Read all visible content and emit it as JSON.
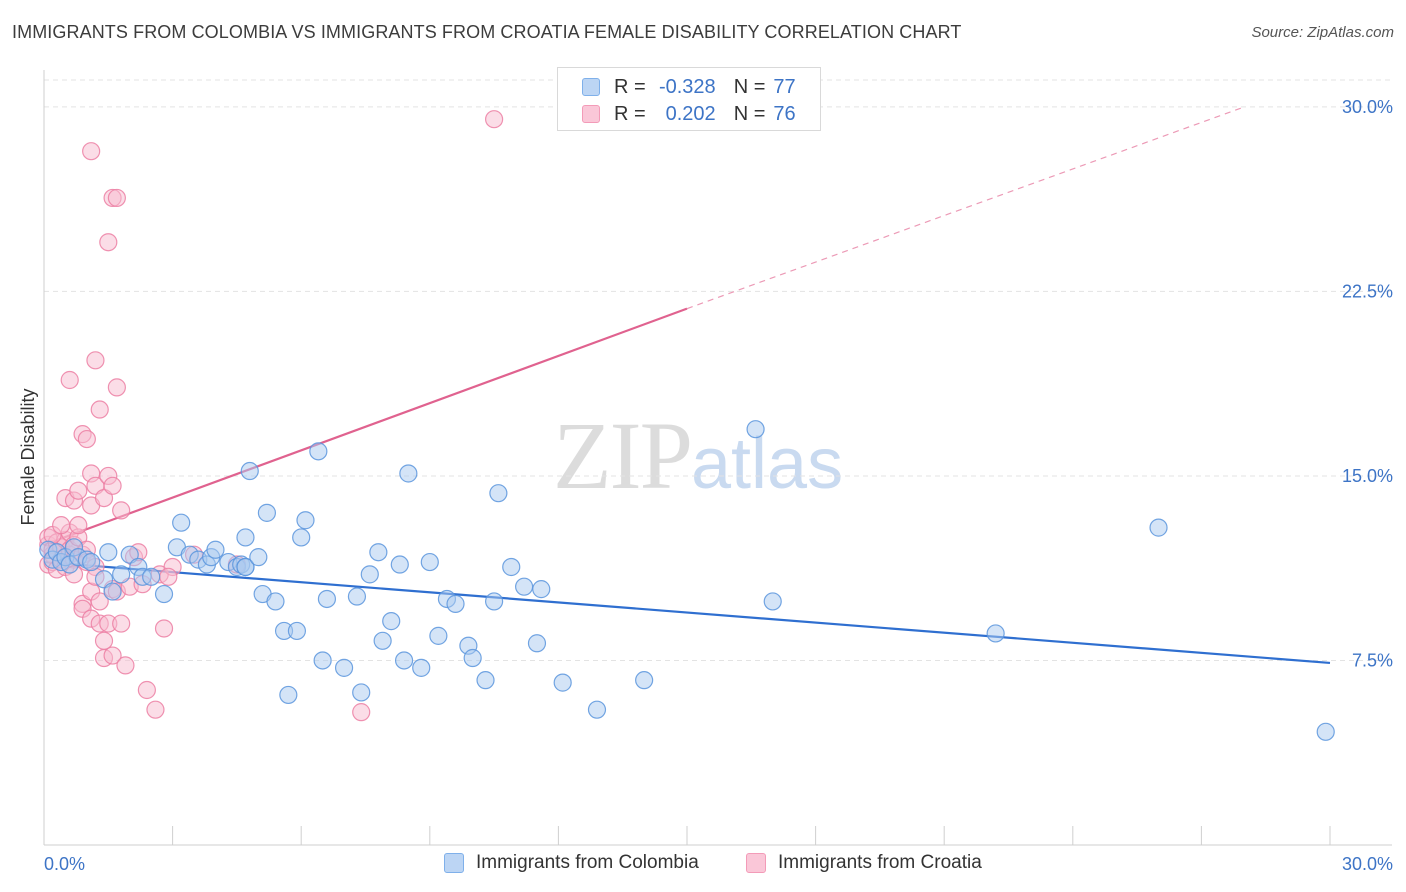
{
  "header": {
    "title": "IMMIGRANTS FROM COLOMBIA VS IMMIGRANTS FROM CROATIA FEMALE DISABILITY CORRELATION CHART",
    "source": "Source: ZipAtlas.com"
  },
  "watermark": {
    "zip": "ZIP",
    "atlas": "atlas"
  },
  "legend": {
    "rows": [
      {
        "r_label": "R =",
        "r_value": "-0.328",
        "n_label": "N =",
        "n_value": "77",
        "color": "#7fb0ea"
      },
      {
        "r_label": "R =",
        "r_value": "0.202",
        "n_label": "N =",
        "n_value": "76",
        "color": "#f39bb8"
      }
    ]
  },
  "bottom_legend": {
    "colombia": "Immigrants from Colombia",
    "croatia": "Immigrants from Croatia"
  },
  "chart_data": {
    "type": "scatter",
    "title": "IMMIGRANTS FROM COLOMBIA VS IMMIGRANTS FROM CROATIA FEMALE DISABILITY CORRELATION CHART",
    "xlabel": "",
    "ylabel": "Female Disability",
    "xlim": [
      0,
      30
    ],
    "ylim": [
      0,
      31.5
    ],
    "x_tick_labels": [
      "0.0%",
      "30.0%"
    ],
    "y_ticks": [
      {
        "value": 7.5,
        "label": "7.5%"
      },
      {
        "value": 15.0,
        "label": "15.0%"
      },
      {
        "value": 22.5,
        "label": "22.5%"
      },
      {
        "value": 30.0,
        "label": "30.0%"
      }
    ],
    "series": [
      {
        "name": "Immigrants from Colombia",
        "color": "#5b95dd",
        "fill": "#a9c9f0",
        "trend": {
          "x0": 0.0,
          "y0": 11.5,
          "x1": 30.0,
          "y1": 7.4,
          "dashed_to": null
        },
        "points": [
          [
            0.1,
            12.0
          ],
          [
            0.2,
            11.6
          ],
          [
            0.3,
            11.9
          ],
          [
            0.4,
            11.5
          ],
          [
            0.5,
            11.7
          ],
          [
            0.6,
            11.4
          ],
          [
            0.7,
            12.1
          ],
          [
            0.8,
            11.7
          ],
          [
            1.0,
            11.6
          ],
          [
            1.1,
            11.5
          ],
          [
            1.4,
            10.8
          ],
          [
            1.5,
            11.9
          ],
          [
            1.6,
            10.3
          ],
          [
            1.8,
            11.0
          ],
          [
            2.0,
            11.8
          ],
          [
            2.2,
            11.3
          ],
          [
            2.3,
            10.9
          ],
          [
            2.5,
            10.9
          ],
          [
            2.8,
            10.2
          ],
          [
            3.1,
            12.1
          ],
          [
            3.2,
            13.1
          ],
          [
            3.4,
            11.8
          ],
          [
            3.6,
            11.6
          ],
          [
            3.8,
            11.4
          ],
          [
            3.9,
            11.7
          ],
          [
            4.0,
            12.0
          ],
          [
            4.3,
            11.5
          ],
          [
            4.5,
            11.3
          ],
          [
            4.6,
            11.4
          ],
          [
            4.7,
            11.3
          ],
          [
            4.7,
            11.3
          ],
          [
            4.7,
            12.5
          ],
          [
            4.8,
            15.2
          ],
          [
            5.0,
            11.7
          ],
          [
            5.1,
            10.2
          ],
          [
            5.2,
            13.5
          ],
          [
            5.4,
            9.9
          ],
          [
            5.6,
            8.7
          ],
          [
            5.7,
            6.1
          ],
          [
            5.9,
            8.7
          ],
          [
            6.0,
            12.5
          ],
          [
            6.1,
            13.2
          ],
          [
            6.4,
            16.0
          ],
          [
            6.5,
            7.5
          ],
          [
            6.6,
            10.0
          ],
          [
            7.0,
            7.2
          ],
          [
            7.3,
            10.1
          ],
          [
            7.4,
            6.2
          ],
          [
            7.6,
            11.0
          ],
          [
            7.8,
            11.9
          ],
          [
            7.9,
            8.3
          ],
          [
            8.1,
            9.1
          ],
          [
            8.3,
            11.4
          ],
          [
            8.4,
            7.5
          ],
          [
            8.5,
            15.1
          ],
          [
            8.8,
            7.2
          ],
          [
            9.0,
            11.5
          ],
          [
            9.2,
            8.5
          ],
          [
            9.4,
            10.0
          ],
          [
            9.6,
            9.8
          ],
          [
            9.9,
            8.1
          ],
          [
            10.0,
            7.6
          ],
          [
            10.3,
            6.7
          ],
          [
            10.5,
            9.9
          ],
          [
            10.6,
            14.3
          ],
          [
            10.9,
            11.3
          ],
          [
            11.2,
            10.5
          ],
          [
            11.5,
            8.2
          ],
          [
            11.6,
            10.4
          ],
          [
            12.1,
            6.6
          ],
          [
            12.9,
            5.5
          ],
          [
            14.0,
            6.7
          ],
          [
            16.6,
            16.9
          ],
          [
            17.0,
            9.9
          ],
          [
            22.2,
            8.6
          ],
          [
            26.0,
            12.9
          ],
          [
            29.9,
            4.6
          ]
        ]
      },
      {
        "name": "Immigrants from Croatia",
        "color": "#ec7fa3",
        "fill": "#f8bcd0",
        "trend": {
          "x0": 0.0,
          "y0": 12.2,
          "x1": 15.0,
          "y1": 21.8,
          "dashed_to": [
            28.0,
            30.0
          ]
        },
        "points": [
          [
            0.1,
            12.2
          ],
          [
            0.1,
            11.4
          ],
          [
            0.1,
            12.5
          ],
          [
            0.2,
            11.8
          ],
          [
            0.2,
            12.0
          ],
          [
            0.2,
            11.5
          ],
          [
            0.3,
            12.3
          ],
          [
            0.3,
            11.2
          ],
          [
            0.3,
            11.9
          ],
          [
            0.4,
            12.1
          ],
          [
            0.4,
            11.6
          ],
          [
            0.5,
            12.4
          ],
          [
            0.5,
            11.3
          ],
          [
            0.6,
            11.8
          ],
          [
            0.6,
            12.0
          ],
          [
            0.6,
            12.7
          ],
          [
            0.7,
            12.2
          ],
          [
            0.7,
            11.6
          ],
          [
            0.7,
            11.0
          ],
          [
            0.8,
            12.5
          ],
          [
            0.8,
            13.0
          ],
          [
            0.9,
            9.8
          ],
          [
            0.9,
            9.6
          ],
          [
            0.9,
            11.8
          ],
          [
            1.0,
            12.0
          ],
          [
            1.0,
            11.5
          ],
          [
            1.1,
            10.3
          ],
          [
            1.1,
            9.2
          ],
          [
            1.2,
            11.3
          ],
          [
            1.2,
            10.9
          ],
          [
            1.3,
            9.9
          ],
          [
            1.3,
            9.0
          ],
          [
            1.4,
            7.6
          ],
          [
            1.4,
            8.3
          ],
          [
            1.5,
            9.0
          ],
          [
            1.6,
            7.7
          ],
          [
            1.6,
            10.4
          ],
          [
            1.7,
            10.3
          ],
          [
            1.8,
            9.0
          ],
          [
            1.9,
            7.3
          ],
          [
            2.0,
            10.5
          ],
          [
            2.1,
            11.7
          ],
          [
            2.2,
            11.9
          ],
          [
            2.3,
            10.6
          ],
          [
            2.4,
            6.3
          ],
          [
            2.6,
            5.5
          ],
          [
            2.7,
            11.0
          ],
          [
            2.8,
            8.8
          ],
          [
            3.0,
            11.3
          ],
          [
            0.5,
            14.1
          ],
          [
            0.6,
            18.9
          ],
          [
            0.7,
            14.0
          ],
          [
            0.8,
            14.4
          ],
          [
            0.9,
            16.7
          ],
          [
            1.0,
            16.5
          ],
          [
            1.1,
            13.8
          ],
          [
            1.1,
            15.1
          ],
          [
            1.2,
            14.6
          ],
          [
            1.2,
            19.7
          ],
          [
            1.3,
            17.7
          ],
          [
            1.4,
            14.1
          ],
          [
            1.5,
            15.0
          ],
          [
            1.6,
            14.6
          ],
          [
            1.7,
            18.6
          ],
          [
            1.8,
            13.6
          ],
          [
            1.5,
            24.5
          ],
          [
            1.6,
            26.3
          ],
          [
            1.7,
            26.3
          ],
          [
            1.1,
            28.2
          ],
          [
            10.5,
            29.5
          ],
          [
            7.4,
            5.4
          ],
          [
            4.5,
            11.4
          ],
          [
            0.2,
            12.6
          ],
          [
            0.4,
            13.0
          ],
          [
            2.9,
            10.9
          ],
          [
            3.5,
            11.8
          ]
        ]
      }
    ]
  }
}
